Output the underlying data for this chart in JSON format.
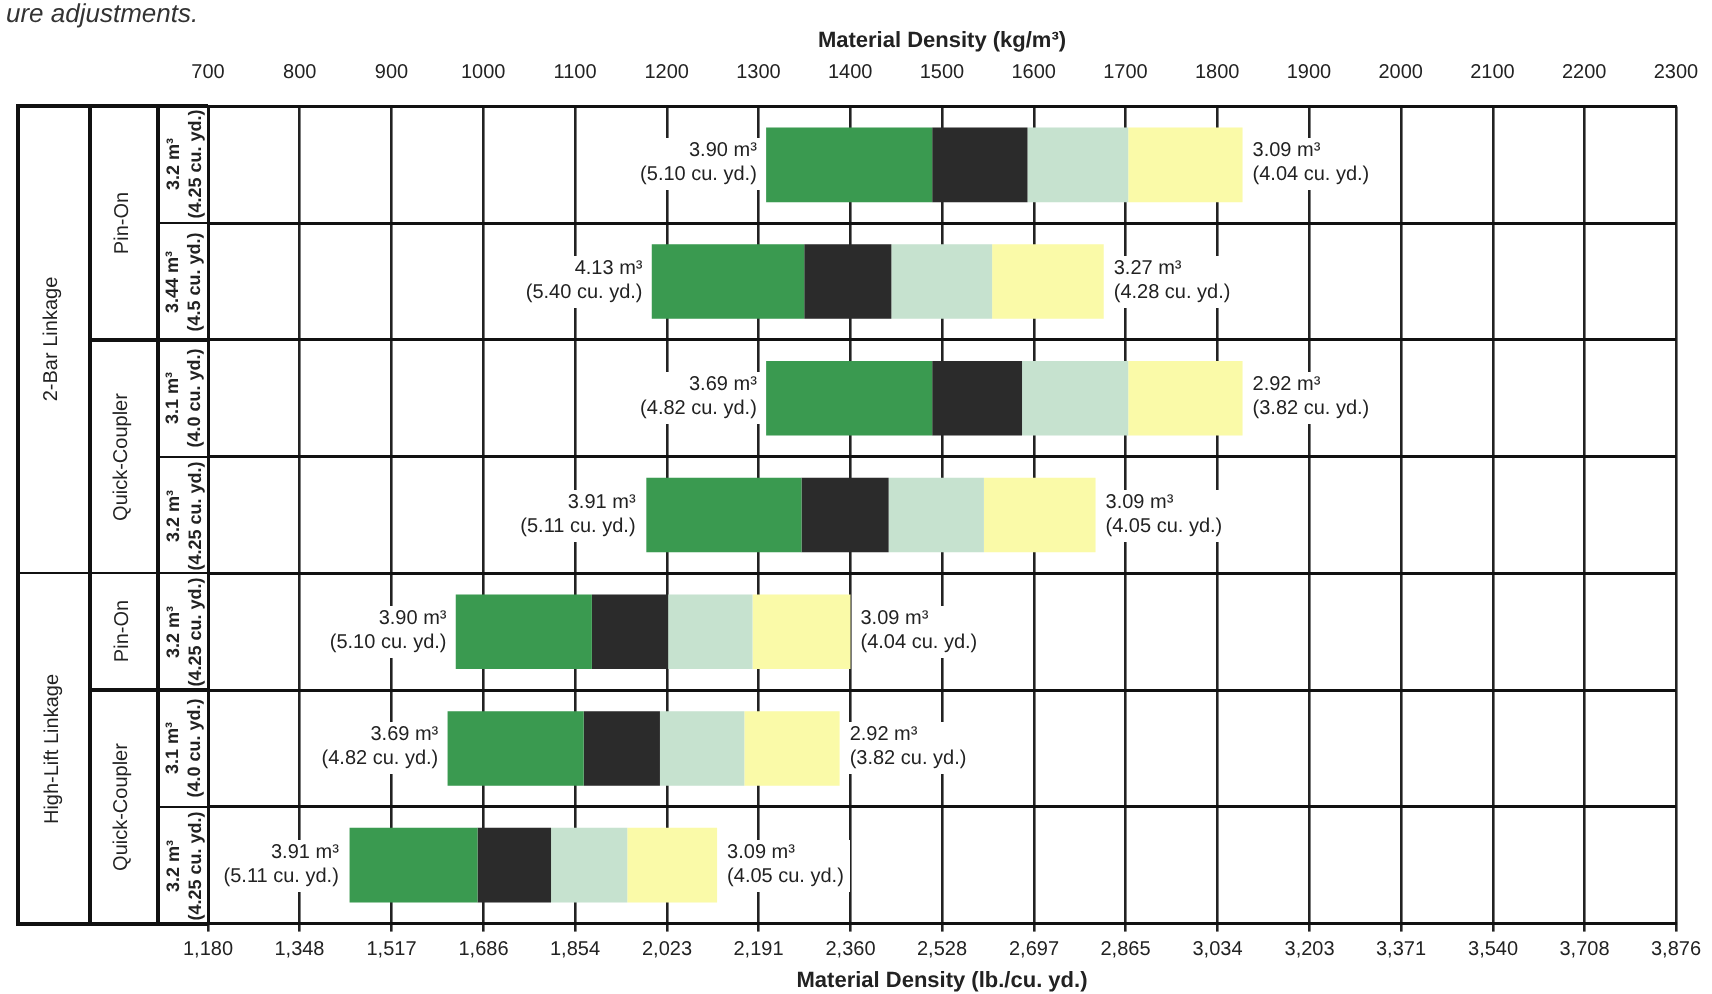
{
  "chart_data": {
    "type": "bar",
    "orientation": "horizontal",
    "xlabel": "Material Density (lb./cu. yd.)",
    "x2label": "Material Density (kg/m³)",
    "categories": [
      "3.2 m³ (4.25 cu. yd.)",
      "3.44 m³ (4.5 cu. yd.)",
      "3.1 m³ (4.0 cu. yd.)",
      "3.2 m³ (4.25 cu. yd.)",
      "3.2 m³ (4.25 cu. yd.)",
      "3.1 m³ (4.0 cu. yd.)",
      "3.2 m³ (4.25 cu. yd.)"
    ],
    "series": [
      {
        "color": "#3a9a50",
        "base": [
          2205,
          1995,
          2205,
          1985,
          1635,
          1620,
          1440
        ],
        "values": [
          305,
          280,
          305,
          285,
          250,
          250,
          235
        ]
      },
      {
        "color": "#2b2b2b",
        "base": [
          2510,
          2275,
          2510,
          2270,
          1885,
          1870,
          1675
        ],
        "values": [
          175,
          160,
          165,
          160,
          140,
          140,
          135
        ]
      },
      {
        "color": "#c6e2cf",
        "base": [
          2685,
          2435,
          2675,
          2430,
          2025,
          2010,
          1810
        ],
        "values": [
          185,
          185,
          195,
          175,
          155,
          155,
          140
        ]
      },
      {
        "color": "#fafaa8",
        "base": [
          2870,
          2620,
          2870,
          2605,
          2180,
          2165,
          1950
        ],
        "values": [
          210,
          205,
          210,
          205,
          180,
          175,
          165
        ]
      }
    ],
    "xlim": [
      1180,
      3876
    ],
    "xticks": [
      {
        "value": 1180,
        "label": "1,180"
      },
      {
        "value": 1348,
        "label": "1,348"
      },
      {
        "value": 1517,
        "label": "1,517"
      },
      {
        "value": 1686,
        "label": "1,686"
      },
      {
        "value": 1854,
        "label": "1,854"
      },
      {
        "value": 2023,
        "label": "2,023"
      },
      {
        "value": 2191,
        "label": "2,191"
      },
      {
        "value": 2360,
        "label": "2,360"
      },
      {
        "value": 2528,
        "label": "2,528"
      },
      {
        "value": 2697,
        "label": "2,697"
      },
      {
        "value": 2865,
        "label": "2,865"
      },
      {
        "value": 3034,
        "label": "3,034"
      },
      {
        "value": 3203,
        "label": "3,203"
      },
      {
        "value": 3371,
        "label": "3,371"
      },
      {
        "value": 3540,
        "label": "3,540"
      },
      {
        "value": 3708,
        "label": "3,708"
      },
      {
        "value": 3876,
        "label": "3,876"
      }
    ],
    "x2lim": [
      700,
      2300
    ],
    "x2ticks": [
      700,
      800,
      900,
      1000,
      1100,
      1200,
      1300,
      1400,
      1500,
      1600,
      1700,
      1800,
      1900,
      2000,
      2100,
      2200,
      2300
    ],
    "grid": true,
    "legend": false,
    "annotations": [
      "ure adjustments.",
      "2-Bar Linkage",
      "Pin-On",
      "Quick-Coupler",
      "High-Lift Linkage",
      "Pin-On",
      "Quick-Coupler",
      "3.90 m³ (5.10 cu. yd.)",
      "3.09 m³ (4.04 cu. yd.)",
      "4.13 m³ (5.40 cu. yd.)",
      "3.27 m³ (4.28 cu. yd.)",
      "3.69 m³ (4.82 cu. yd.)",
      "2.92 m³ (3.82 cu. yd.)",
      "3.91 m³ (5.11 cu. yd.)",
      "3.09 m³ (4.05 cu. yd.)",
      "3.90 m³ (5.10 cu. yd.)",
      "3.09 m³ (4.04 cu. yd.)",
      "3.69 m³ (4.82 cu. yd.)",
      "2.92 m³ (3.82 cu. yd.)",
      "3.91 m³ (5.11 cu. yd.)",
      "3.09 m³ (4.05 cu. yd.)"
    ]
  }
}
